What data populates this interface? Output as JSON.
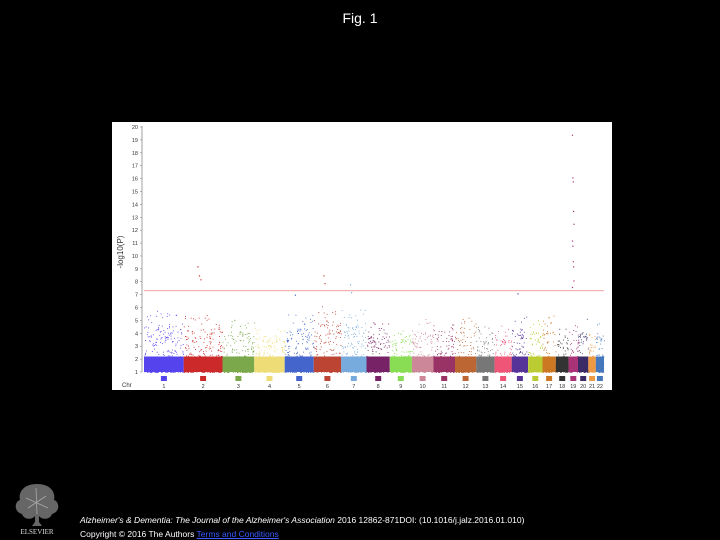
{
  "slide": {
    "title": "Fig. 1",
    "citation_journal": "Alzheimer's & Dementia: The Journal of the Alzheimer's Association",
    "citation_rest": " 2016 12862-871DOI: (10.1016/j.jalz.2016.01.010)",
    "copyright_text": "Copyright © 2016 The Authors ",
    "terms_link": "Terms and Conditions",
    "publisher": "ELSEVIER"
  },
  "chart_data": {
    "type": "scatter",
    "subtype": "manhattan",
    "ylabel": "-log10(P)",
    "ylim": [
      1,
      20
    ],
    "yticks": [
      1,
      2,
      3,
      4,
      5,
      6,
      7,
      8,
      9,
      10,
      11,
      12,
      13,
      14,
      15,
      16,
      17,
      18,
      19,
      20
    ],
    "significance_threshold": 7.3,
    "threshold_color": "#f08080",
    "legend_prefix": "Chr",
    "chromosomes": [
      {
        "label": "1",
        "color": "#5544ee",
        "base_max": 5.8,
        "peaks": []
      },
      {
        "label": "2",
        "color": "#cc2a2a",
        "base_max": 5.5,
        "peaks": [
          9.2,
          8.5,
          8.2
        ]
      },
      {
        "label": "3",
        "color": "#7aa84a",
        "base_max": 5.2,
        "peaks": []
      },
      {
        "label": "4",
        "color": "#eedd77",
        "base_max": 4.6,
        "peaks": []
      },
      {
        "label": "5",
        "color": "#4466cc",
        "base_max": 5.5,
        "peaks": [
          7.0
        ]
      },
      {
        "label": "6",
        "color": "#bb4433",
        "base_max": 6.2,
        "peaks": [
          8.5,
          7.9
        ]
      },
      {
        "label": "7",
        "color": "#77aadd",
        "base_max": 6.0,
        "peaks": [
          7.8,
          7.2
        ]
      },
      {
        "label": "8",
        "color": "#772266",
        "base_max": 5.0,
        "peaks": []
      },
      {
        "label": "9",
        "color": "#88dd55",
        "base_max": 4.4,
        "peaks": []
      },
      {
        "label": "10",
        "color": "#cc8899",
        "base_max": 5.2,
        "peaks": []
      },
      {
        "label": "11",
        "color": "#993366",
        "base_max": 5.2,
        "peaks": []
      },
      {
        "label": "12",
        "color": "#bb6633",
        "base_max": 5.3,
        "peaks": []
      },
      {
        "label": "13",
        "color": "#777777",
        "base_max": 4.6,
        "peaks": []
      },
      {
        "label": "14",
        "color": "#ee5577",
        "base_max": 4.6,
        "peaks": []
      },
      {
        "label": "15",
        "color": "#553399",
        "base_max": 5.5,
        "peaks": [
          7.1
        ]
      },
      {
        "label": "16",
        "color": "#bbcc33",
        "base_max": 5.2,
        "peaks": []
      },
      {
        "label": "17",
        "color": "#cc7722",
        "base_max": 5.4,
        "peaks": []
      },
      {
        "label": "18",
        "color": "#333333",
        "base_max": 4.4,
        "peaks": []
      },
      {
        "label": "19",
        "color": "#aa3377",
        "base_max": 5.0,
        "peaks": [
          19.4,
          16.1,
          15.8,
          13.5,
          12.5,
          11.2,
          10.8,
          9.6,
          9.2,
          8.1,
          7.6
        ]
      },
      {
        "label": "20",
        "color": "#3a2a66",
        "base_max": 5.2,
        "peaks": []
      },
      {
        "label": "21",
        "color": "#ee9944",
        "base_max": 4.0,
        "peaks": []
      },
      {
        "label": "22",
        "color": "#4477bb",
        "base_max": 4.8,
        "peaks": []
      }
    ]
  }
}
